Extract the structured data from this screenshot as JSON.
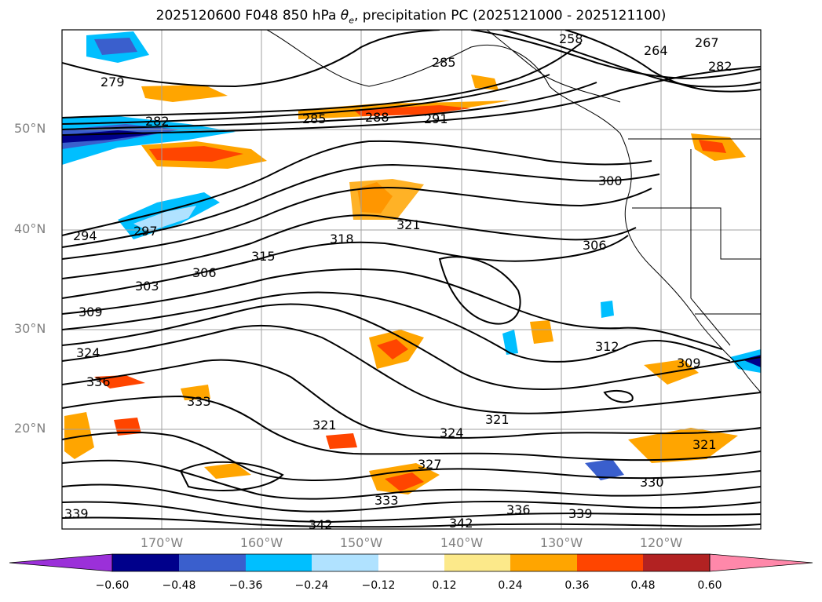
{
  "title_main": "2025120600 F048 850 hPa ",
  "title_symbol": "θ",
  "title_symbol_sub": "e",
  "title_tail": ", precipitation PC (2025121000 - 2025121100)",
  "lat_labels": [
    "50°N",
    "40°N",
    "30°N",
    "20°N"
  ],
  "lon_labels": [
    "170°W",
    "160°W",
    "150°W",
    "140°W",
    "130°W",
    "120°W"
  ],
  "contour_labels": [
    "279",
    "282",
    "285",
    "288",
    "291",
    "294",
    "297",
    "300",
    "303",
    "306",
    "309",
    "312",
    "315",
    "318",
    "321",
    "324",
    "327",
    "330",
    "333",
    "336",
    "339",
    "342",
    "264",
    "267",
    "258"
  ],
  "colorbar": {
    "colors": [
      "#9b30d9",
      "#00008b",
      "#3a5fcd",
      "#00bfff",
      "#b0e2ff",
      "#ffffff",
      "#fce98a",
      "#ffa500",
      "#ff4500",
      "#b22222",
      "#ff88aa"
    ],
    "tick_labels": [
      "−0.60",
      "−0.48",
      "−0.36",
      "−0.24",
      "−0.12",
      "0.12",
      "0.24",
      "0.36",
      "0.48",
      "0.60"
    ]
  }
}
